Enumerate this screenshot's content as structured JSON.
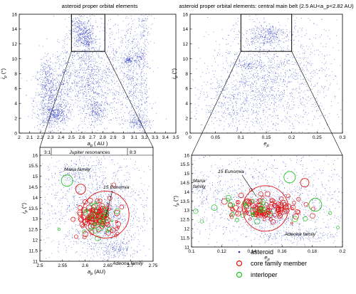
{
  "chart_data": [
    {
      "id": "tl",
      "type": "scatter",
      "title": "asteroid proper orbital elements",
      "xlabel": "a_p ( AU )",
      "ylabel": "i_p (°)",
      "xlim": [
        2.0,
        3.5
      ],
      "ylim": [
        0,
        16
      ],
      "xticks": [
        "2",
        "2.1",
        "2.2",
        "2.3",
        "2.4",
        "2.5",
        "2.6",
        "2.7",
        "2.8",
        "2.9",
        "3",
        "3.1",
        "3.2",
        "3.3",
        "3.4",
        "3.5"
      ],
      "yticks": [
        "0",
        "2",
        "4",
        "6",
        "8",
        "10",
        "12",
        "14",
        "16"
      ],
      "zoom_box": {
        "x": [
          2.5,
          2.82
        ],
        "y": [
          11,
          16
        ]
      },
      "series": [
        {
          "name": "asteroid",
          "color": "#1f2fbf"
        }
      ]
    },
    {
      "id": "tr",
      "type": "scatter",
      "title": "asteroid proper orbital elements: central main belt (2.5 AU<a_p<2.82 AU)",
      "xlabel": "e_p",
      "ylabel": "i_p (°)",
      "xlim": [
        0,
        0.3
      ],
      "ylim": [
        0,
        16
      ],
      "xticks": [
        "0",
        "0.05",
        "0.1",
        "0.15",
        "0.2",
        "0.25",
        "0.3"
      ],
      "yticks": [
        "0",
        "2",
        "4",
        "6",
        "8",
        "10",
        "12",
        "14",
        "16"
      ],
      "zoom_box": {
        "x": [
          0.1,
          0.2
        ],
        "y": [
          11,
          16
        ]
      },
      "series": [
        {
          "name": "asteroid",
          "color": "#1f2fbf"
        }
      ]
    },
    {
      "id": "bl",
      "type": "scatter",
      "xlabel": "a_p (AU)",
      "ylabel": "i_p (°)",
      "xlim": [
        2.5,
        2.75
      ],
      "ylim": [
        11,
        16
      ],
      "xticks": [
        "2.5",
        "2.55",
        "2.6",
        "2.65",
        "2.7",
        "2.75"
      ],
      "yticks": [
        "11",
        "11.5",
        "12",
        "12.5",
        "13",
        "13.5",
        "14",
        "14.5",
        "15",
        "15.5",
        "16"
      ],
      "top_strip": {
        "left": "3:1",
        "center": "Jupiter resonances",
        "right": "8:3"
      },
      "annotations": [
        "Maria family",
        "15 Eunomia",
        "Adeona family"
      ],
      "series": [
        {
          "name": "asteroid",
          "color": "#1f2fbf"
        },
        {
          "name": "core family member",
          "color": "#e01010"
        },
        {
          "name": "interloper",
          "color": "#20c020"
        }
      ]
    },
    {
      "id": "br",
      "type": "scatter",
      "xlabel": "e_p",
      "ylabel": "i_p (°)",
      "xlim": [
        0.1,
        0.2
      ],
      "ylim": [
        11,
        16
      ],
      "xticks": [
        "0.1",
        "0.12",
        "0.14",
        "0.16",
        "0.18",
        "0.2"
      ],
      "yticks": [
        "11",
        "11.5",
        "12",
        "12.5",
        "13",
        "13.5",
        "14",
        "14.5",
        "15",
        "15.5",
        "16"
      ],
      "annotations": [
        "Maria family",
        "15 Eunomia",
        "Adeona family"
      ],
      "series": [
        {
          "name": "asteroid",
          "color": "#1f2fbf"
        },
        {
          "name": "core family member",
          "color": "#e01010"
        },
        {
          "name": "interloper",
          "color": "#20c020"
        }
      ]
    }
  ],
  "legend": {
    "placement": "bottom-right",
    "items": [
      {
        "label": "asteroid",
        "marker": "dot",
        "color": "#1f2fbf"
      },
      {
        "label": "core family member",
        "marker": "circle",
        "color": "#e01010"
      },
      {
        "label": "interloper",
        "marker": "circle",
        "color": "#20c020"
      }
    ]
  }
}
